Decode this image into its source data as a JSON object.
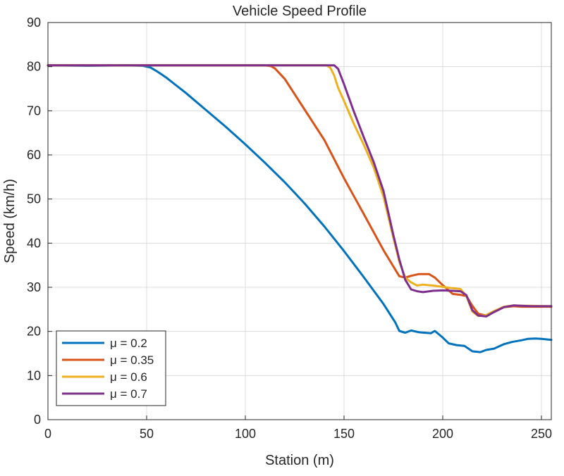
{
  "chart_data": {
    "type": "line",
    "title": "Vehicle Speed Profile",
    "xlabel": "Station (m)",
    "ylabel": "Speed (km/h)",
    "xlim": [
      0,
      255
    ],
    "ylim": [
      0,
      90
    ],
    "xticks": [
      0,
      50,
      100,
      150,
      200,
      250
    ],
    "yticks": [
      0,
      10,
      20,
      30,
      40,
      50,
      60,
      70,
      80,
      90
    ],
    "grid": true,
    "legend_position": "bottom-left",
    "series": [
      {
        "name": "μ = 0.2",
        "color": "#0072BD",
        "x": [
          0,
          20,
          40,
          48,
          52,
          55,
          60,
          70,
          80,
          90,
          100,
          110,
          120,
          130,
          140,
          150,
          160,
          170,
          176,
          178,
          181,
          184,
          188,
          194,
          196,
          200,
          203,
          207,
          211,
          215,
          219,
          222,
          226,
          231,
          235,
          240,
          243,
          247,
          250,
          255
        ],
        "y": [
          80.3,
          80.2,
          80.3,
          80.2,
          79.8,
          79.0,
          77.5,
          74.0,
          70.2,
          66.4,
          62.4,
          58.2,
          53.8,
          49.0,
          43.8,
          38.2,
          32.3,
          26.2,
          22.0,
          20.1,
          19.7,
          20.2,
          19.8,
          19.6,
          20.1,
          18.6,
          17.3,
          16.9,
          16.7,
          15.5,
          15.3,
          15.8,
          16.1,
          17.1,
          17.6,
          18.0,
          18.3,
          18.4,
          18.3,
          18.1
        ]
      },
      {
        "name": "μ = 0.35",
        "color": "#D95319",
        "x": [
          0,
          50,
          100,
          110,
          113,
          115,
          120,
          130,
          140,
          150,
          160,
          170,
          178,
          181,
          184,
          188,
          193,
          196,
          200,
          205,
          209,
          212,
          215,
          218,
          222,
          226,
          231,
          236,
          240,
          245,
          255
        ],
        "y": [
          80.3,
          80.3,
          80.3,
          80.3,
          80.1,
          79.6,
          77.2,
          70.3,
          63.4,
          54.7,
          46.6,
          38.4,
          32.5,
          32.2,
          32.6,
          33.0,
          33.0,
          32.2,
          30.5,
          28.5,
          28.3,
          28.0,
          25.8,
          24.0,
          23.6,
          24.4,
          25.5,
          25.7,
          25.6,
          25.6,
          25.6
        ]
      },
      {
        "name": "μ = 0.6",
        "color": "#EDB120",
        "x": [
          0,
          50,
          100,
          141,
          143,
          145,
          147,
          150,
          155,
          160,
          165,
          170,
          175,
          178,
          181,
          184,
          187,
          190,
          195,
          200,
          205,
          209,
          212,
          215,
          218,
          222,
          226,
          231,
          236,
          240,
          245,
          255
        ],
        "y": [
          80.3,
          80.3,
          80.3,
          80.3,
          79.8,
          78.0,
          75.2,
          72.2,
          67.0,
          62.3,
          57.2,
          50.5,
          41.2,
          35.8,
          32.2,
          31.1,
          30.4,
          30.6,
          30.4,
          30.1,
          29.8,
          29.6,
          28.0,
          24.5,
          23.5,
          23.7,
          24.6,
          25.6,
          25.9,
          25.8,
          25.8,
          25.7
        ]
      },
      {
        "name": "μ = 0.7",
        "color": "#7E2F8E",
        "x": [
          0,
          50,
          100,
          140,
          145,
          147,
          150,
          155,
          160,
          165,
          170,
          175,
          178,
          181,
          184,
          187,
          190,
          195,
          200,
          205,
          209,
          212,
          215,
          218,
          222,
          226,
          231,
          236,
          240,
          245,
          255
        ],
        "y": [
          80.3,
          80.3,
          80.3,
          80.3,
          80.3,
          79.5,
          76.0,
          69.8,
          64.0,
          58.4,
          51.8,
          41.8,
          36.3,
          31.7,
          29.5,
          29.1,
          28.9,
          29.2,
          29.3,
          29.2,
          29.1,
          28.2,
          24.8,
          23.6,
          23.4,
          24.4,
          25.5,
          25.9,
          25.8,
          25.7,
          25.7
        ]
      }
    ]
  }
}
